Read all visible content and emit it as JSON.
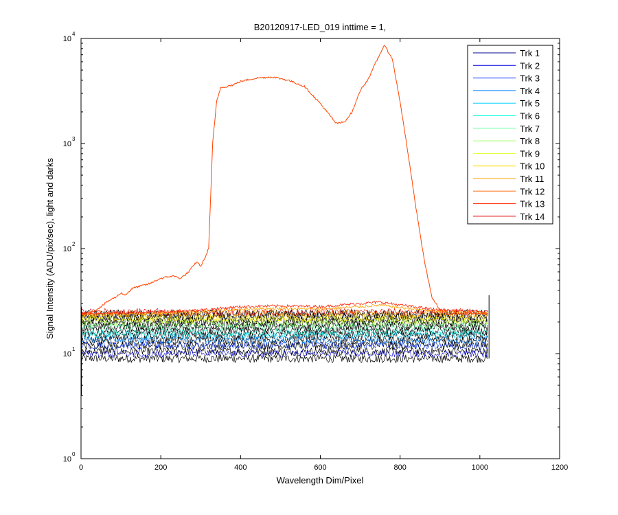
{
  "chart_data": {
    "type": "line",
    "title": "B20120917-LED_019 inttime = 1,",
    "xlabel": "Wavelength Dim/Pixel",
    "ylabel": "Signal Intensity (ADU/pix/sec), light and darks",
    "xlim": [
      0,
      1200
    ],
    "ylim": [
      1,
      10000
    ],
    "yscale": "log",
    "grid": false,
    "legend_position": "top-right",
    "x_ticks": [
      "0",
      "200",
      "400",
      "600",
      "800",
      "1000",
      "1200"
    ],
    "y_ticks": [
      {
        "base": "10",
        "exp": "0"
      },
      {
        "base": "10",
        "exp": "1"
      },
      {
        "base": "10",
        "exp": "2"
      },
      {
        "base": "10",
        "exp": "3"
      },
      {
        "base": "10",
        "exp": "4"
      }
    ],
    "series": [
      {
        "name": "Trk 1",
        "color": "#00008f"
      },
      {
        "name": "Trk 2",
        "color": "#0000df"
      },
      {
        "name": "Trk 3",
        "color": "#0030ff"
      },
      {
        "name": "Trk 4",
        "color": "#0080ff"
      },
      {
        "name": "Trk 5",
        "color": "#00cfff"
      },
      {
        "name": "Trk 6",
        "color": "#20ffdf"
      },
      {
        "name": "Trk 7",
        "color": "#60ffa0"
      },
      {
        "name": "Trk 8",
        "color": "#9fff60"
      },
      {
        "name": "Trk 9",
        "color": "#dfff20"
      },
      {
        "name": "Trk 10",
        "color": "#ffdf00"
      },
      {
        "name": "Trk 11",
        "color": "#ff9f00"
      },
      {
        "name": "Trk 12",
        "color": "#ff6000"
      },
      {
        "name": "Trk 13",
        "color": "#ff2000"
      },
      {
        "name": "Trk 14",
        "color": "#df0000"
      }
    ],
    "dark_traces": {
      "color": "#000000",
      "levels": [
        9,
        10.5,
        12,
        13.5,
        15,
        16.5,
        18,
        19.5,
        21,
        22.5,
        24
      ]
    },
    "noise_traces": [
      {
        "color": "#0000df",
        "level": 10
      },
      {
        "color": "#0030ff",
        "level": 12
      },
      {
        "color": "#0080ff",
        "level": 13.5
      },
      {
        "color": "#00cfff",
        "level": 15
      },
      {
        "color": "#20ffdf",
        "level": 16
      },
      {
        "color": "#60ffa0",
        "level": 18
      },
      {
        "color": "#9fff60",
        "level": 19.5
      },
      {
        "color": "#dfff20",
        "level": 21
      },
      {
        "color": "#ffdf00",
        "level": 22
      },
      {
        "color": "#ff9f00",
        "level": 24
      },
      {
        "color": "#df0000",
        "level": 25
      }
    ],
    "led_trace": {
      "color": "#ff4400",
      "x": [
        0,
        30,
        50,
        70,
        90,
        100,
        110,
        130,
        150,
        170,
        200,
        230,
        250,
        270,
        290,
        300,
        310,
        320,
        330,
        340,
        350,
        380,
        400,
        440,
        480,
        520,
        560,
        600,
        640,
        660,
        680,
        700,
        720,
        740,
        760,
        780,
        800,
        820,
        840,
        860,
        880,
        900,
        920,
        1020
      ],
      "y": [
        24,
        25,
        28,
        32,
        35,
        38,
        36,
        42,
        44,
        46,
        52,
        55,
        52,
        60,
        75,
        68,
        80,
        100,
        1000,
        2500,
        3400,
        3600,
        3900,
        4200,
        4300,
        4000,
        3500,
        2400,
        1550,
        1600,
        2000,
        3200,
        4100,
        6000,
        8600,
        6500,
        2500,
        800,
        240,
        80,
        34,
        26,
        24,
        24
      ]
    },
    "hot_trace": {
      "color": "#ff2000",
      "x": [
        0,
        200,
        300,
        400,
        500,
        600,
        700,
        750,
        800,
        900,
        1020
      ],
      "y": [
        24,
        25,
        26,
        28,
        28.5,
        28,
        30,
        31,
        29,
        26,
        25
      ]
    },
    "warm_trace": {
      "color": "#ff9f00",
      "x": [
        0,
        200,
        300,
        400,
        500,
        600,
        700,
        750,
        800,
        900,
        1020
      ],
      "y": [
        23.5,
        24.2,
        25,
        26.5,
        27,
        26.5,
        28,
        29,
        27.5,
        25,
        24.5
      ]
    }
  }
}
